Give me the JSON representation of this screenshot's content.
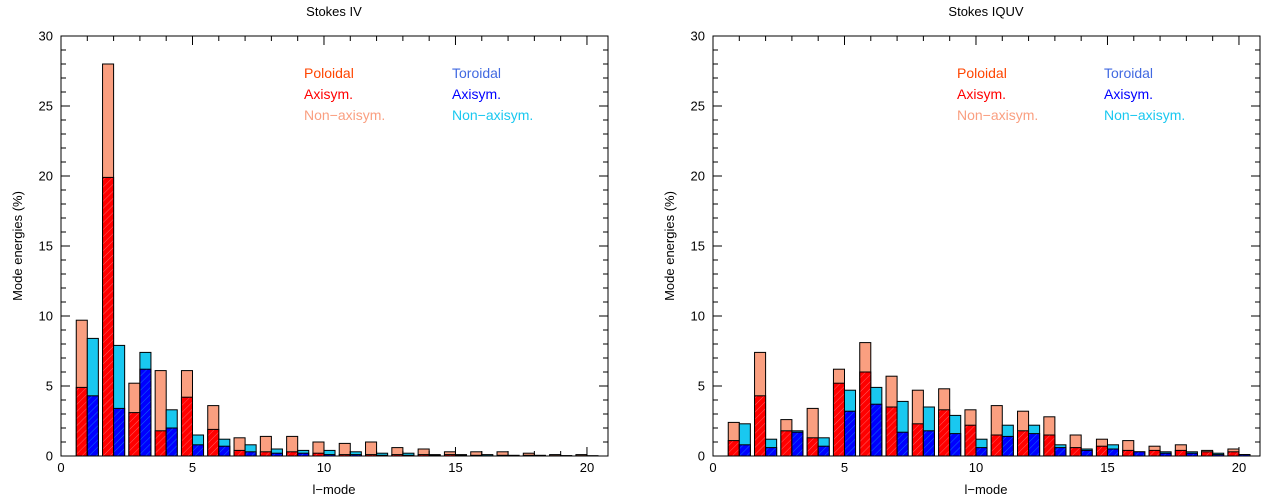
{
  "colors": {
    "poloidal_axisym": "#ff0000",
    "poloidal_nonaxisym": "#fa9f80",
    "toroidal_axisym": "#0000ff",
    "toroidal_nonaxisym": "#19c8f0",
    "legend_poloidal": "#ff4500",
    "legend_toroidal": "#4169e1"
  },
  "legend": {
    "poloidal": "Poloidal",
    "poloidal_axisym": "Axisym.",
    "poloidal_nonaxisym": "Non−axisym.",
    "toroidal": "Toroidal",
    "toroidal_axisym": "Axisym.",
    "toroidal_nonaxisym": "Non−axisym."
  },
  "chart_data": [
    {
      "type": "bar",
      "title": "Stokes IV",
      "xlabel": "l−mode",
      "ylabel": "Mode energies (%)",
      "xlim": [
        0,
        20.8
      ],
      "ylim": [
        0,
        30
      ],
      "xticks": [
        0,
        5,
        10,
        15,
        20
      ],
      "yticks": [
        0,
        5,
        10,
        15,
        20,
        25,
        30
      ],
      "x": [
        1,
        2,
        3,
        4,
        5,
        6,
        7,
        8,
        9,
        10,
        11,
        12,
        13,
        14,
        15,
        16,
        17,
        18,
        19,
        20
      ],
      "series": [
        {
          "name": "Poloidal Axisym.",
          "values": [
            4.9,
            19.9,
            3.1,
            1.8,
            4.2,
            1.9,
            0.4,
            0.3,
            0.3,
            0.2,
            0.1,
            0.1,
            0.1,
            0.1,
            0.1,
            0.05,
            0.05,
            0.05,
            0.02,
            0.02
          ]
        },
        {
          "name": "Poloidal total",
          "values": [
            9.7,
            28.0,
            5.2,
            6.1,
            6.1,
            3.6,
            1.3,
            1.4,
            1.4,
            1.0,
            0.9,
            1.0,
            0.6,
            0.5,
            0.3,
            0.3,
            0.3,
            0.2,
            0.1,
            0.1
          ]
        },
        {
          "name": "Toroidal Axisym.",
          "values": [
            4.3,
            3.4,
            6.2,
            2.0,
            0.8,
            0.7,
            0.3,
            0.2,
            0.2,
            0.1,
            0.1,
            0.05,
            0.05,
            0.05,
            0.05,
            0.02,
            0.02,
            0.02,
            0.01,
            0.01
          ]
        },
        {
          "name": "Toroidal total",
          "values": [
            8.4,
            7.9,
            7.4,
            3.3,
            1.5,
            1.2,
            0.8,
            0.5,
            0.4,
            0.4,
            0.3,
            0.2,
            0.2,
            0.1,
            0.1,
            0.1,
            0.05,
            0.05,
            0.03,
            0.02
          ]
        }
      ]
    },
    {
      "type": "bar",
      "title": "Stokes IQUV",
      "xlabel": "l−mode",
      "ylabel": "Mode energies (%)",
      "xlim": [
        0,
        20.8
      ],
      "ylim": [
        0,
        30
      ],
      "xticks": [
        0,
        5,
        10,
        15,
        20
      ],
      "yticks": [
        0,
        5,
        10,
        15,
        20,
        25,
        30
      ],
      "x": [
        1,
        2,
        3,
        4,
        5,
        6,
        7,
        8,
        9,
        10,
        11,
        12,
        13,
        14,
        15,
        16,
        17,
        18,
        19,
        20
      ],
      "series": [
        {
          "name": "Poloidal Axisym.",
          "values": [
            1.1,
            4.3,
            1.8,
            1.3,
            5.2,
            6.0,
            3.5,
            2.3,
            3.3,
            2.2,
            1.5,
            1.8,
            1.5,
            0.6,
            0.7,
            0.4,
            0.4,
            0.4,
            0.3,
            0.3
          ]
        },
        {
          "name": "Poloidal total",
          "values": [
            2.4,
            7.4,
            2.6,
            3.4,
            6.2,
            8.1,
            5.7,
            4.7,
            4.8,
            3.3,
            3.6,
            3.2,
            2.8,
            1.5,
            1.2,
            1.1,
            0.7,
            0.8,
            0.4,
            0.5
          ]
        },
        {
          "name": "Toroidal Axisym.",
          "values": [
            0.8,
            0.6,
            1.7,
            0.7,
            3.2,
            3.7,
            1.7,
            1.8,
            1.6,
            0.6,
            1.4,
            1.6,
            0.6,
            0.4,
            0.5,
            0.3,
            0.2,
            0.2,
            0.1,
            0.1
          ]
        },
        {
          "name": "Toroidal total",
          "values": [
            2.3,
            1.2,
            1.8,
            1.3,
            4.7,
            4.9,
            3.9,
            3.5,
            2.9,
            1.2,
            2.2,
            2.2,
            0.8,
            0.5,
            0.8,
            0.3,
            0.3,
            0.3,
            0.2,
            0.1
          ]
        }
      ]
    }
  ]
}
